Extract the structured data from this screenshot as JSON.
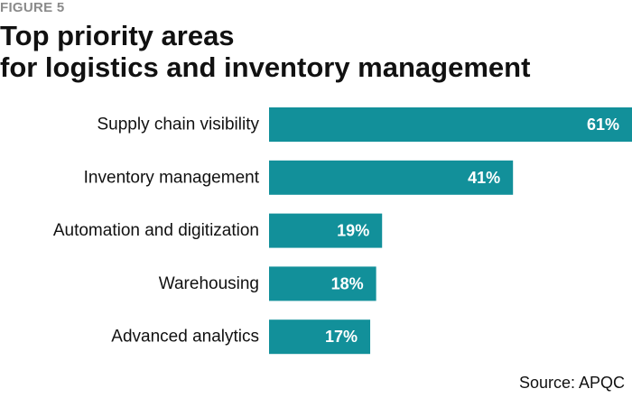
{
  "figure_label": "FIGURE 5",
  "title_lines": [
    "Top priority areas",
    "for logistics and inventory management"
  ],
  "source": "Source: APQC",
  "bar_color": "#12909a",
  "chart_data": {
    "type": "bar",
    "orientation": "horizontal",
    "title": "Top priority areas for logistics and inventory management",
    "categories": [
      "Supply chain visibility",
      "Inventory management",
      "Automation and digitization",
      "Warehousing",
      "Advanced analytics"
    ],
    "values": [
      61,
      41,
      19,
      18,
      17
    ],
    "value_labels": [
      "61%",
      "41%",
      "19%",
      "18%",
      "17%"
    ],
    "xlim": [
      0,
      61
    ],
    "xlabel": "",
    "ylabel": "",
    "grid": false,
    "legend": "none"
  }
}
